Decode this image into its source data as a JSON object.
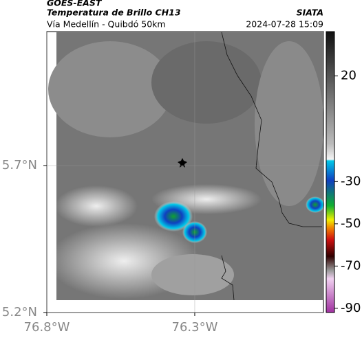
{
  "header": {
    "title": "GOES-EAST",
    "subtitle": "Temperatura de Brillo CH13",
    "source": "SIATA",
    "route": "Vía Medellín - Quibdó 50km",
    "timestamp": "2024-07-28 15:09"
  },
  "map": {
    "xlim": [
      -76.8,
      -75.865
    ],
    "ylim": [
      5.2,
      6.156
    ],
    "xticks": [
      {
        "value": -76.8,
        "label": "76.8°W"
      },
      {
        "value": -76.3,
        "label": "76.3°W"
      }
    ],
    "yticks": [
      {
        "value": 5.2,
        "label": "5.2°N"
      },
      {
        "value": 5.7,
        "label": "5.7°N"
      }
    ]
  },
  "colorbar": {
    "lim": [
      -92,
      41
    ],
    "ticks": [
      20,
      -30,
      -50,
      -70,
      -90
    ]
  }
}
